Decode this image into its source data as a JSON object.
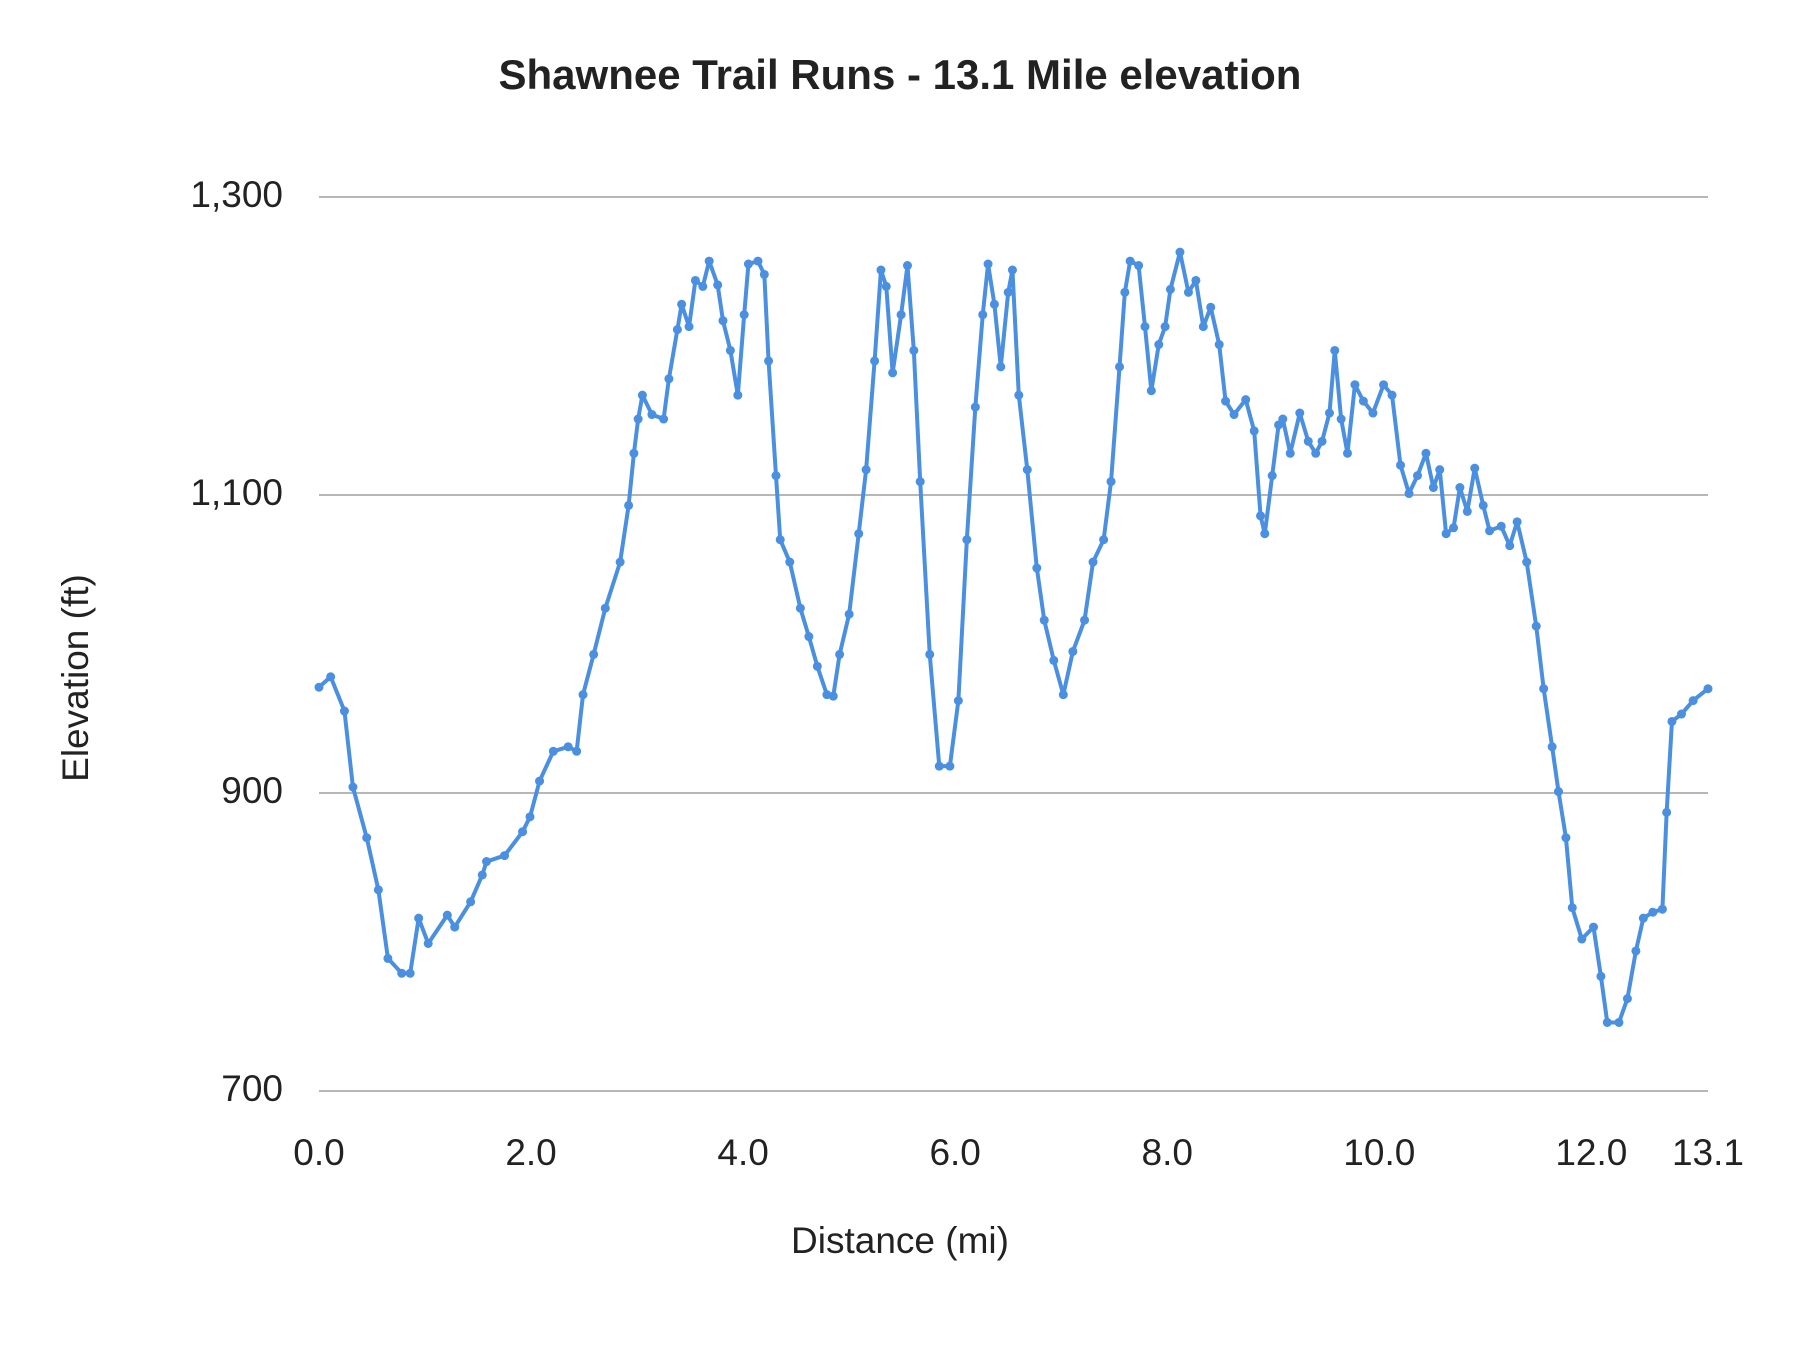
{
  "chart_data": {
    "type": "line",
    "title": "Shawnee Trail Runs - 13.1 Mile elevation",
    "x_label": "Distance (mi)",
    "y_label": "Elevation (ft)",
    "xlim": [
      0,
      13.1
    ],
    "xticks": [
      {
        "value": 0,
        "label": "0.0"
      },
      {
        "value": 2,
        "label": "2.0"
      },
      {
        "value": 4,
        "label": "4.0"
      },
      {
        "value": 6,
        "label": "6.0"
      },
      {
        "value": 8,
        "label": "8.0"
      },
      {
        "value": 10,
        "label": "10.0"
      },
      {
        "value": 12,
        "label": "12.0"
      },
      {
        "value": 13.1,
        "label": "13.1"
      }
    ],
    "ylim": [
      700,
      1300
    ],
    "yticks": [
      {
        "value": 700,
        "label": "700"
      },
      {
        "value": 900,
        "label": "900"
      },
      {
        "value": 1100,
        "label": "1,100"
      },
      {
        "value": 1300,
        "label": "1,300"
      }
    ],
    "grid": true,
    "x": [
      0.0,
      0.11,
      0.24,
      0.32,
      0.45,
      0.56,
      0.65,
      0.78,
      0.86,
      0.94,
      1.03,
      1.21,
      1.28,
      1.43,
      1.54,
      1.58,
      1.75,
      1.92,
      1.99,
      2.08,
      2.21,
      2.35,
      2.43,
      2.49,
      2.59,
      2.7,
      2.84,
      2.92,
      2.97,
      3.01,
      3.05,
      3.14,
      3.25,
      3.3,
      3.38,
      3.42,
      3.49,
      3.55,
      3.62,
      3.68,
      3.76,
      3.81,
      3.88,
      3.95,
      4.01,
      4.05,
      4.14,
      4.2,
      4.24,
      4.31,
      4.35,
      4.44,
      4.54,
      4.62,
      4.7,
      4.79,
      4.85,
      4.91,
      5.0,
      5.09,
      5.16,
      5.24,
      5.3,
      5.35,
      5.41,
      5.49,
      5.55,
      5.61,
      5.67,
      5.76,
      5.85,
      5.95,
      6.03,
      6.11,
      6.19,
      6.26,
      6.31,
      6.37,
      6.43,
      6.5,
      6.54,
      6.6,
      6.68,
      6.77,
      6.84,
      6.93,
      7.02,
      7.11,
      7.22,
      7.3,
      7.4,
      7.47,
      7.55,
      7.6,
      7.65,
      7.73,
      7.79,
      7.85,
      7.92,
      7.98,
      8.03,
      8.12,
      8.2,
      8.27,
      8.34,
      8.41,
      8.49,
      8.55,
      8.63,
      8.74,
      8.82,
      8.88,
      8.92,
      8.99,
      9.05,
      9.09,
      9.16,
      9.25,
      9.33,
      9.4,
      9.46,
      9.53,
      9.58,
      9.64,
      9.7,
      9.77,
      9.85,
      9.94,
      10.04,
      10.12,
      10.2,
      10.28,
      10.36,
      10.44,
      10.51,
      10.57,
      10.63,
      10.7,
      10.76,
      10.83,
      10.9,
      10.98,
      11.04,
      11.15,
      11.23,
      11.3,
      11.39,
      11.48,
      11.55,
      11.63,
      11.69,
      11.76,
      11.82,
      11.91,
      12.02,
      12.09,
      12.15,
      12.26,
      12.34,
      12.42,
      12.49,
      12.58,
      12.67,
      12.71,
      12.76,
      12.85,
      12.96,
      13.1
    ],
    "series": [
      {
        "color": "#4a8fe0",
        "values": [
          971,
          978,
          955,
          904,
          870,
          835,
          789,
          779,
          779,
          816,
          799,
          818,
          810,
          827,
          845,
          854,
          858,
          874,
          884,
          908,
          928,
          931,
          928,
          966,
          993,
          1024,
          1055,
          1093,
          1128,
          1151,
          1167,
          1154,
          1151,
          1178,
          1211,
          1228,
          1213,
          1244,
          1240,
          1257,
          1241,
          1217,
          1197,
          1167,
          1221,
          1255,
          1257,
          1248,
          1190,
          1113,
          1070,
          1055,
          1024,
          1005,
          985,
          966,
          965,
          993,
          1020,
          1074,
          1117,
          1190,
          1251,
          1240,
          1182,
          1221,
          1254,
          1197,
          1109,
          993,
          918,
          918,
          962,
          1070,
          1159,
          1221,
          1255,
          1228,
          1186,
          1236,
          1251,
          1167,
          1117,
          1051,
          1016,
          989,
          966,
          995,
          1016,
          1055,
          1070,
          1109,
          1186,
          1236,
          1257,
          1254,
          1213,
          1170,
          1201,
          1213,
          1238,
          1263,
          1236,
          1244,
          1213,
          1226,
          1201,
          1163,
          1154,
          1164,
          1143,
          1086,
          1074,
          1113,
          1147,
          1151,
          1128,
          1155,
          1136,
          1128,
          1136,
          1155,
          1197,
          1151,
          1128,
          1174,
          1163,
          1155,
          1174,
          1167,
          1120,
          1101,
          1113,
          1128,
          1105,
          1117,
          1074,
          1078,
          1105,
          1089,
          1118,
          1093,
          1076,
          1079,
          1066,
          1082,
          1055,
          1012,
          970,
          931,
          901,
          870,
          823,
          802,
          810,
          777,
          746,
          746,
          762,
          794,
          816,
          820,
          822,
          887,
          948,
          953,
          962,
          970
        ]
      }
    ]
  }
}
